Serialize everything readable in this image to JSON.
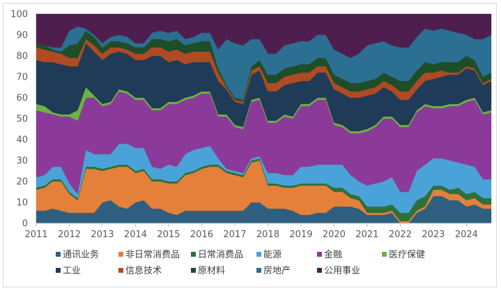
{
  "chart_data": {
    "type": "area",
    "stacked": true,
    "ylim": [
      0,
      100
    ],
    "yticks": [
      0,
      10,
      20,
      30,
      40,
      50,
      60,
      70,
      80,
      90,
      100
    ],
    "xlim": [
      2011,
      2024.75
    ],
    "xticks": [
      2011,
      2012,
      2013,
      2014,
      2015,
      2016,
      2017,
      2018,
      2019,
      2020,
      2021,
      2022,
      2023,
      2024
    ],
    "xtick_labels": [
      "2011",
      "2012",
      "2013",
      "2014",
      "2015",
      "2016",
      "2017",
      "2018",
      "2019",
      "2020",
      "2021",
      "2022",
      "2023",
      "2024"
    ],
    "x": [
      2011.0,
      2011.25,
      2011.5,
      2011.75,
      2012.0,
      2012.25,
      2012.5,
      2012.75,
      2013.0,
      2013.25,
      2013.5,
      2013.75,
      2014.0,
      2014.25,
      2014.5,
      2014.75,
      2015.0,
      2015.25,
      2015.5,
      2015.75,
      2016.0,
      2016.25,
      2016.5,
      2016.75,
      2017.0,
      2017.25,
      2017.5,
      2017.75,
      2018.0,
      2018.25,
      2018.5,
      2018.75,
      2019.0,
      2019.25,
      2019.5,
      2019.75,
      2020.0,
      2020.25,
      2020.5,
      2020.75,
      2021.0,
      2021.25,
      2021.5,
      2021.75,
      2022.0,
      2022.25,
      2022.5,
      2022.75,
      2023.0,
      2023.25,
      2023.5,
      2023.75,
      2024.0,
      2024.25,
      2024.5,
      2024.75
    ],
    "legend_position": "bottom",
    "series": [
      {
        "name": "通讯业务",
        "color": "#2e5f7f",
        "values": [
          6,
          6,
          7,
          6,
          5,
          5,
          5,
          5,
          10,
          11,
          8,
          7,
          10,
          11,
          7,
          7,
          5,
          4,
          6,
          6,
          6,
          6,
          6,
          6,
          6,
          6,
          10,
          10,
          7,
          7,
          7,
          6,
          4,
          4,
          5,
          5,
          8,
          8,
          8,
          7,
          4,
          4,
          4,
          5,
          0,
          0,
          5,
          7,
          13,
          13,
          11,
          11,
          8,
          9,
          7,
          7
        ]
      },
      {
        "name": "非日常消费品",
        "color": "#e5803a",
        "values": [
          10,
          11,
          13,
          14,
          9,
          6,
          21,
          21,
          15,
          15,
          19,
          20,
          14,
          14,
          13,
          13,
          14,
          15,
          17,
          18,
          20,
          21,
          21,
          18,
          17,
          16,
          19,
          20,
          11,
          11,
          10,
          11,
          14,
          14,
          13,
          13,
          7,
          7,
          4,
          4,
          1,
          1,
          1,
          1,
          1,
          1,
          1,
          1,
          3,
          3,
          3,
          3,
          3,
          3,
          2,
          2
        ]
      },
      {
        "name": "日常消费品",
        "color": "#2f6f3a",
        "values": [
          1,
          1,
          1,
          1,
          1,
          1,
          1,
          1,
          1,
          1,
          1,
          1,
          1,
          1,
          1,
          1,
          1,
          1,
          1,
          1,
          1,
          1,
          1,
          1,
          1,
          1,
          1,
          1,
          1,
          1,
          1,
          1,
          1,
          1,
          1,
          1,
          2,
          2,
          2,
          2,
          3,
          3,
          3,
          3,
          4,
          4,
          5,
          5,
          2,
          2,
          2,
          3,
          3,
          3,
          3,
          3
        ]
      },
      {
        "name": "能源",
        "color": "#4aa3d8",
        "values": [
          5,
          5,
          6,
          6,
          4,
          2,
          8,
          6,
          7,
          6,
          10,
          10,
          11,
          10,
          6,
          5,
          8,
          7,
          9,
          10,
          9,
          9,
          3,
          1,
          1,
          1,
          1,
          1,
          5,
          5,
          5,
          5,
          8,
          8,
          9,
          9,
          11,
          11,
          9,
          7,
          10,
          11,
          12,
          13,
          10,
          10,
          14,
          15,
          13,
          13,
          14,
          12,
          14,
          12,
          9,
          9
        ]
      },
      {
        "name": "金融",
        "color": "#8b3a9a",
        "values": [
          32,
          30,
          25,
          24,
          32,
          35,
          25,
          27,
          23,
          24,
          25,
          24,
          23,
          23,
          27,
          28,
          29,
          30,
          26,
          25,
          26,
          25,
          20,
          25,
          21,
          21,
          27,
          27,
          24,
          24,
          28,
          27,
          29,
          29,
          31,
          31,
          19,
          18,
          20,
          23,
          26,
          27,
          30,
          28,
          31,
          31,
          28,
          28,
          24,
          24,
          26,
          27,
          30,
          32,
          31,
          32
        ]
      },
      {
        "name": "医疗保健",
        "color": "#6db33f",
        "values": [
          3,
          3,
          1,
          1,
          1,
          5,
          5,
          1,
          1,
          1,
          1,
          1,
          1,
          1,
          1,
          1,
          1,
          1,
          1,
          1,
          1,
          1,
          1,
          1,
          1,
          1,
          1,
          1,
          1,
          1,
          1,
          1,
          1,
          1,
          1,
          1,
          1,
          1,
          1,
          1,
          1,
          1,
          1,
          1,
          1,
          1,
          1,
          1,
          1,
          1,
          1,
          1,
          1,
          1,
          1,
          1
        ]
      },
      {
        "name": "工业",
        "color": "#1f3b57",
        "values": [
          21,
          21,
          24,
          24,
          23,
          21,
          21,
          21,
          21,
          23,
          18,
          18,
          18,
          18,
          25,
          25,
          19,
          20,
          16,
          16,
          14,
          14,
          16,
          12,
          11,
          11,
          12,
          13,
          14,
          14,
          14,
          16,
          11,
          11,
          12,
          12,
          16,
          15,
          16,
          16,
          16,
          15,
          14,
          12,
          12,
          12,
          10,
          11,
          13,
          14,
          14,
          14,
          15,
          13,
          13,
          14
        ]
      },
      {
        "name": "信息技术",
        "color": "#b04a22",
        "values": [
          6,
          6,
          5,
          5,
          4,
          4,
          2,
          3,
          3,
          3,
          2,
          2,
          3,
          3,
          4,
          4,
          5,
          5,
          5,
          5,
          5,
          5,
          4,
          1,
          1,
          1,
          2,
          2,
          4,
          4,
          4,
          4,
          4,
          4,
          3,
          3,
          3,
          3,
          3,
          3,
          3,
          3,
          3,
          3,
          4,
          4,
          4,
          4,
          3,
          3,
          1,
          1,
          1,
          1,
          1,
          1
        ]
      },
      {
        "name": "原材料",
        "color": "#1e4d2a",
        "values": [
          2,
          2,
          1,
          1,
          6,
          7,
          4,
          4,
          3,
          3,
          3,
          3,
          3,
          3,
          4,
          4,
          5,
          5,
          4,
          4,
          5,
          5,
          2,
          1,
          1,
          1,
          2,
          3,
          4,
          4,
          4,
          4,
          4,
          4,
          4,
          4,
          4,
          4,
          4,
          4,
          4,
          4,
          4,
          4,
          5,
          5,
          5,
          5,
          4,
          4,
          5,
          5,
          5,
          4,
          3,
          3
        ]
      },
      {
        "name": "房地产",
        "color": "#2b6f93",
        "values": [
          0,
          0,
          1,
          2,
          7,
          8,
          1,
          1,
          2,
          2,
          3,
          3,
          2,
          2,
          3,
          4,
          4,
          4,
          3,
          3,
          4,
          4,
          9,
          22,
          26,
          26,
          13,
          10,
          10,
          10,
          11,
          11,
          11,
          11,
          11,
          11,
          12,
          12,
          12,
          14,
          17,
          17,
          15,
          15,
          16,
          16,
          16,
          16,
          16,
          16,
          15,
          14,
          10,
          10,
          18,
          18
        ]
      },
      {
        "name": "公用事业",
        "color": "#4e1f4e",
        "values": [
          14,
          15,
          16,
          16,
          8,
          6,
          7,
          10,
          14,
          11,
          10,
          11,
          14,
          14,
          9,
          9,
          9,
          8,
          12,
          11,
          9,
          9,
          17,
          12,
          14,
          15,
          12,
          12,
          19,
          19,
          15,
          14,
          13,
          13,
          10,
          10,
          17,
          19,
          21,
          19,
          15,
          14,
          13,
          15,
          16,
          16,
          11,
          7,
          8,
          7,
          8,
          9,
          10,
          12,
          12,
          10
        ]
      }
    ]
  }
}
